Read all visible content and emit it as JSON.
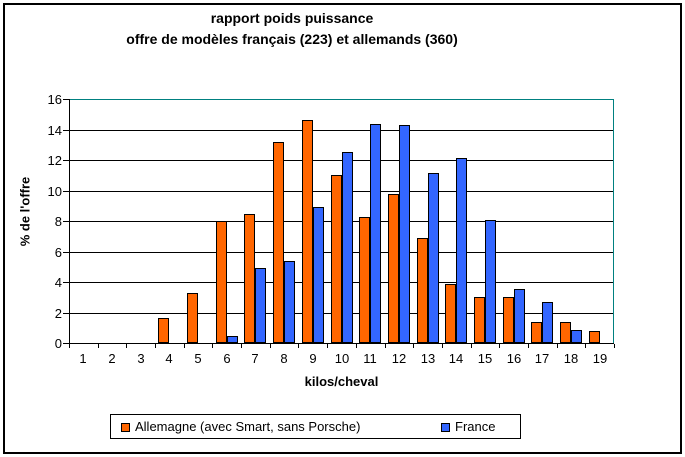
{
  "chart_data": {
    "type": "bar",
    "title": "rapport poids puissance",
    "subtitle": "offre de modèles français (223) et allemands (360)",
    "xlabel": "kilos/cheval",
    "ylabel": "% de l'offre",
    "categories": [
      "1",
      "2",
      "3",
      "4",
      "5",
      "6",
      "7",
      "8",
      "9",
      "10",
      "11",
      "12",
      "13",
      "14",
      "15",
      "16",
      "17",
      "18",
      "19"
    ],
    "series": [
      {
        "name": "Allemagne (avec Smart, sans Porsche)",
        "color": "#FF6600",
        "values": [
          0,
          0,
          0,
          1.65,
          3.3,
          8.0,
          8.45,
          13.2,
          14.6,
          11.0,
          8.25,
          9.8,
          6.9,
          3.9,
          3.0,
          3.0,
          1.4,
          1.4,
          0.8
        ]
      },
      {
        "name": "France",
        "color": "#3366FF",
        "values": [
          0,
          0,
          0,
          0,
          0,
          0.45,
          4.95,
          5.4,
          8.9,
          12.5,
          14.35,
          14.3,
          11.15,
          12.1,
          8.05,
          3.55,
          2.7,
          0.85,
          0
        ]
      }
    ],
    "ylim": [
      0,
      16
    ],
    "yticks": [
      0,
      2,
      4,
      6,
      8,
      10,
      12,
      14,
      16
    ],
    "grid": true,
    "legend_position": "bottom",
    "plot_border_color": "#008080",
    "grid_color": "#000000",
    "background_color": "#FFFFFF"
  }
}
